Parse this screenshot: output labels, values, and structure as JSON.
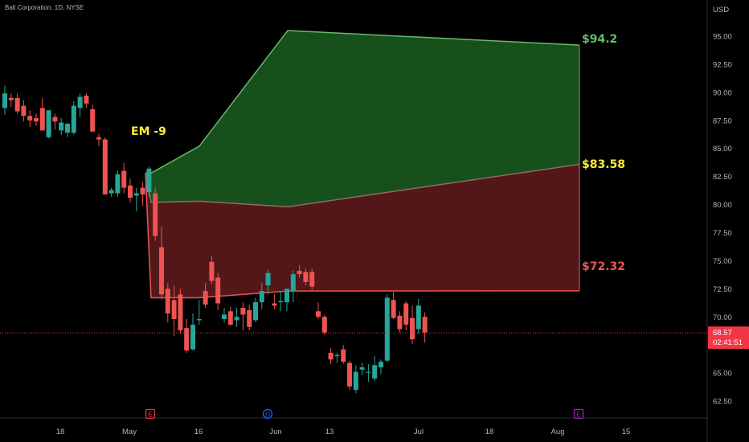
{
  "header": {
    "symbol_line": "Ball Corporation, 1D, NYSE"
  },
  "price_axis": {
    "currency": "USD",
    "ticks": [
      "95.00",
      "92.50",
      "90.00",
      "87.50",
      "85.00",
      "82.50",
      "80.00",
      "77.50",
      "75.00",
      "72.50",
      "70.00",
      "67.50",
      "65.00",
      "62.50"
    ]
  },
  "time_axis": {
    "ticks": [
      "18",
      "May",
      "16",
      "Jun",
      "13",
      "Jul",
      "18",
      "Aug",
      "15"
    ]
  },
  "current_price": {
    "value": "68.57",
    "countdown": "02:41:51"
  },
  "events": [
    {
      "letter": "E",
      "color": "#f23645"
    },
    {
      "letter": "D",
      "color": "#2962ff"
    },
    {
      "letter": "E",
      "color": "#9c27b0"
    }
  ],
  "annotations": {
    "em_label": "EM -9",
    "upper_label": "$94.2",
    "mid_label": "$83.58",
    "lower_label": "$72.32"
  },
  "colors": {
    "up": "#26a69a",
    "down": "#ef5350",
    "upper_fill": "#1b5e20",
    "upper_line": "#66bb6a",
    "lower_fill": "#5c1a1d",
    "lower_line": "#ef5350",
    "mid_text": "#ffeb3b",
    "upper_text": "#66bb6a",
    "lower_text": "#ef5350",
    "em_text": "#ffeb3b",
    "price_badge": "#f23645"
  },
  "chart_data": {
    "type": "candlestick",
    "y_range": [
      61.5,
      96.5
    ],
    "candles": [
      {
        "o": 88.6,
        "h": 90.6,
        "l": 88.0,
        "c": 89.9
      },
      {
        "o": 89.5,
        "h": 89.9,
        "l": 88.7,
        "c": 89.3
      },
      {
        "o": 89.5,
        "h": 89.9,
        "l": 88.1,
        "c": 88.3
      },
      {
        "o": 88.8,
        "h": 89.3,
        "l": 87.4,
        "c": 87.9
      },
      {
        "o": 87.9,
        "h": 88.4,
        "l": 86.9,
        "c": 87.5
      },
      {
        "o": 87.7,
        "h": 88.1,
        "l": 87.0,
        "c": 87.4
      },
      {
        "o": 88.6,
        "h": 89.5,
        "l": 86.6,
        "c": 86.6
      },
      {
        "o": 86.0,
        "h": 88.4,
        "l": 85.9,
        "c": 88.4
      },
      {
        "o": 87.8,
        "h": 88.1,
        "l": 86.7,
        "c": 87.4
      },
      {
        "o": 86.6,
        "h": 87.7,
        "l": 86.2,
        "c": 87.3
      },
      {
        "o": 86.4,
        "h": 87.3,
        "l": 86.0,
        "c": 87.2
      },
      {
        "o": 86.4,
        "h": 89.2,
        "l": 86.2,
        "c": 88.8
      },
      {
        "o": 88.6,
        "h": 89.9,
        "l": 87.8,
        "c": 89.6
      },
      {
        "o": 89.7,
        "h": 89.9,
        "l": 88.6,
        "c": 89.0
      },
      {
        "o": 88.5,
        "h": 88.9,
        "l": 86.5,
        "c": 86.5
      },
      {
        "o": 86.0,
        "h": 86.3,
        "l": 85.2,
        "c": 85.8
      },
      {
        "o": 85.8,
        "h": 86.0,
        "l": 80.9,
        "c": 80.9
      },
      {
        "o": 81.0,
        "h": 81.5,
        "l": 80.7,
        "c": 81.3
      },
      {
        "o": 81.0,
        "h": 83.0,
        "l": 80.7,
        "c": 82.7
      },
      {
        "o": 83.0,
        "h": 83.7,
        "l": 81.0,
        "c": 81.5
      },
      {
        "o": 81.7,
        "h": 82.3,
        "l": 80.2,
        "c": 80.6
      },
      {
        "o": 80.8,
        "h": 81.5,
        "l": 79.4,
        "c": 81.0
      },
      {
        "o": 81.5,
        "h": 82.0,
        "l": 79.9,
        "c": 80.9
      },
      {
        "o": 81.1,
        "h": 83.4,
        "l": 80.7,
        "c": 83.2
      },
      {
        "o": 81.0,
        "h": 81.5,
        "l": 76.8,
        "c": 77.2
      },
      {
        "o": 76.2,
        "h": 78.0,
        "l": 71.5,
        "c": 72.0
      },
      {
        "o": 72.5,
        "h": 73.0,
        "l": 69.5,
        "c": 70.3
      },
      {
        "o": 71.5,
        "h": 72.8,
        "l": 68.3,
        "c": 69.8
      },
      {
        "o": 72.0,
        "h": 72.5,
        "l": 68.5,
        "c": 68.8
      },
      {
        "o": 69.0,
        "h": 69.8,
        "l": 66.8,
        "c": 67.0
      },
      {
        "o": 67.1,
        "h": 70.3,
        "l": 67.0,
        "c": 69.3
      },
      {
        "o": 69.7,
        "h": 71.5,
        "l": 69.3,
        "c": 69.8
      },
      {
        "o": 72.3,
        "h": 73.0,
        "l": 70.8,
        "c": 71.1
      },
      {
        "o": 74.9,
        "h": 75.4,
        "l": 72.9,
        "c": 73.2
      },
      {
        "o": 73.5,
        "h": 73.9,
        "l": 70.6,
        "c": 71.2
      },
      {
        "o": 69.8,
        "h": 70.8,
        "l": 69.5,
        "c": 70.2
      },
      {
        "o": 70.5,
        "h": 70.9,
        "l": 69.2,
        "c": 69.3
      },
      {
        "o": 69.7,
        "h": 70.8,
        "l": 69.1,
        "c": 70.0
      },
      {
        "o": 70.8,
        "h": 71.3,
        "l": 68.8,
        "c": 70.2
      },
      {
        "o": 70.6,
        "h": 71.1,
        "l": 68.8,
        "c": 69.1
      },
      {
        "o": 69.7,
        "h": 71.7,
        "l": 69.5,
        "c": 71.3
      },
      {
        "o": 71.3,
        "h": 73.0,
        "l": 70.7,
        "c": 72.3
      },
      {
        "o": 72.8,
        "h": 74.2,
        "l": 72.0,
        "c": 73.9
      },
      {
        "o": 71.2,
        "h": 72.0,
        "l": 70.7,
        "c": 71.0
      },
      {
        "o": 71.3,
        "h": 72.3,
        "l": 70.5,
        "c": 71.4
      },
      {
        "o": 71.3,
        "h": 72.5,
        "l": 70.5,
        "c": 72.5
      },
      {
        "o": 72.3,
        "h": 74.1,
        "l": 71.3,
        "c": 73.8
      },
      {
        "o": 74.1,
        "h": 74.6,
        "l": 73.5,
        "c": 73.8
      },
      {
        "o": 74.0,
        "h": 74.3,
        "l": 72.8,
        "c": 73.1
      },
      {
        "o": 74.0,
        "h": 74.3,
        "l": 72.4,
        "c": 72.7
      },
      {
        "o": 70.5,
        "h": 71.3,
        "l": 69.8,
        "c": 70.0
      },
      {
        "o": 70.0,
        "h": 70.2,
        "l": 68.4,
        "c": 68.6
      },
      {
        "o": 66.8,
        "h": 67.2,
        "l": 65.8,
        "c": 66.2
      },
      {
        "o": 66.5,
        "h": 66.8,
        "l": 65.9,
        "c": 66.6
      },
      {
        "o": 67.1,
        "h": 67.5,
        "l": 65.8,
        "c": 66.0
      },
      {
        "o": 65.9,
        "h": 66.1,
        "l": 63.5,
        "c": 63.8
      },
      {
        "o": 63.5,
        "h": 65.7,
        "l": 63.2,
        "c": 65.1
      },
      {
        "o": 65.3,
        "h": 65.9,
        "l": 64.8,
        "c": 65.5
      },
      {
        "o": 65.1,
        "h": 65.8,
        "l": 64.2,
        "c": 65.1
      },
      {
        "o": 64.5,
        "h": 66.5,
        "l": 64.3,
        "c": 65.7
      },
      {
        "o": 65.5,
        "h": 66.2,
        "l": 64.9,
        "c": 66.0
      },
      {
        "o": 66.1,
        "h": 72.0,
        "l": 66.0,
        "c": 71.7
      },
      {
        "o": 71.5,
        "h": 72.2,
        "l": 69.8,
        "c": 69.9
      },
      {
        "o": 70.1,
        "h": 70.5,
        "l": 68.6,
        "c": 68.9
      },
      {
        "o": 71.2,
        "h": 71.4,
        "l": 68.8,
        "c": 69.3
      },
      {
        "o": 69.9,
        "h": 71.0,
        "l": 67.6,
        "c": 68.0
      },
      {
        "o": 68.9,
        "h": 71.6,
        "l": 68.5,
        "c": 71.0
      },
      {
        "o": 70.0,
        "h": 70.4,
        "l": 67.7,
        "c": 68.6
      }
    ],
    "expected_move": {
      "x_dates": [
        "Apr 28",
        "May 4",
        "May 16",
        "Jun 1",
        "Aug 5"
      ],
      "upper": [
        82.8,
        82.8,
        85.2,
        95.5,
        94.2
      ],
      "mid": [
        82.8,
        80.2,
        80.3,
        79.8,
        83.58
      ],
      "lower": [
        82.8,
        71.7,
        71.7,
        72.3,
        72.32
      ]
    },
    "current_price_line": 68.57
  }
}
